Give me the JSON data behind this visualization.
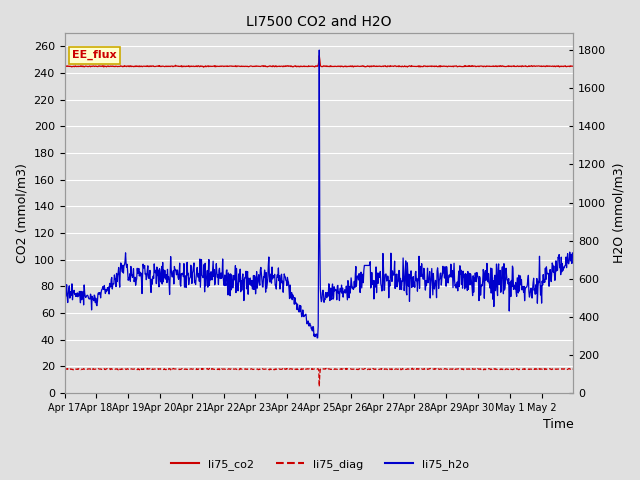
{
  "title": "LI7500 CO2 and H2O",
  "xlabel": "Time",
  "ylabel_left": "CO2 (mmol/m3)",
  "ylabel_right": "H2O (mmol/m3)",
  "ylim_left": [
    0,
    270
  ],
  "ylim_right": [
    0,
    1890
  ],
  "yticks_left": [
    0,
    20,
    40,
    60,
    80,
    100,
    120,
    140,
    160,
    180,
    200,
    220,
    240,
    260
  ],
  "yticks_right": [
    0,
    200,
    400,
    600,
    800,
    1000,
    1200,
    1400,
    1600,
    1800
  ],
  "xtick_labels": [
    "Apr 17",
    "Apr 18",
    "Apr 19",
    "Apr 20",
    "Apr 21",
    "Apr 22",
    "Apr 23",
    "Apr 24",
    "Apr 25",
    "Apr 26",
    "Apr 27",
    "Apr 28",
    "Apr 29",
    "Apr 30",
    "May 1",
    "May 2"
  ],
  "background_color": "#e0e0e0",
  "plot_bg_color": "#e0e0e0",
  "grid_color": "#ffffff",
  "legend_entries": [
    "li75_co2",
    "li75_diag",
    "li75_h2o"
  ],
  "co2_color": "#cc0000",
  "diag_color": "#cc0000",
  "h2o_color": "#0000cc",
  "annotation_text": "EE_flux",
  "annotation_color": "#cc0000",
  "annotation_bg": "#ffffcc",
  "annotation_border": "#ccaa00",
  "n_points": 960
}
